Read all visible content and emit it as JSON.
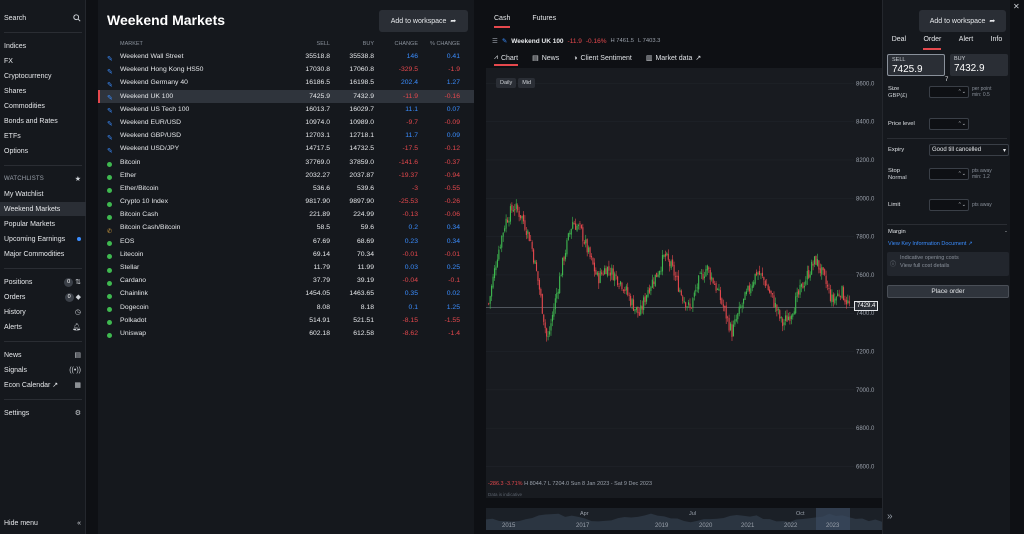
{
  "sidebar": {
    "search": "Search",
    "markets": [
      "Indices",
      "FX",
      "Cryptocurrency",
      "Shares",
      "Commodities",
      "Bonds and Rates",
      "ETFs",
      "Options"
    ],
    "watchlists_header": "WATCHLISTS",
    "watchlists": [
      "My Watchlist",
      "Weekend Markets",
      "Popular Markets",
      "Upcoming Earnings",
      "Major Commodities"
    ],
    "positions": "Positions",
    "positions_count": "0",
    "orders": "Orders",
    "orders_count": "0",
    "history": "History",
    "alerts": "Alerts",
    "news": "News",
    "signals": "Signals",
    "econ": "Econ Calendar",
    "settings": "Settings",
    "hide": "Hide menu"
  },
  "watchlist": {
    "title": "Weekend Markets",
    "add_btn": "Add to workspace",
    "headers": {
      "market": "MARKET",
      "sell": "SELL",
      "buy": "BUY",
      "change": "CHANGE",
      "pct": "% CHANGE"
    },
    "rows": [
      {
        "icon": "pencil",
        "name": "Weekend Wall Street",
        "sell": "35518.8",
        "buy": "35538.8",
        "chg": "146",
        "pct": "0.41",
        "dir": "pos"
      },
      {
        "icon": "pencil",
        "name": "Weekend Hong Kong HS50",
        "sell": "17030.8",
        "buy": "17060.8",
        "chg": "-329.5",
        "pct": "-1.9",
        "dir": "neg"
      },
      {
        "icon": "pencil",
        "name": "Weekend Germany 40",
        "sell": "16186.5",
        "buy": "16198.5",
        "chg": "202.4",
        "pct": "1.27",
        "dir": "pos"
      },
      {
        "icon": "pencil",
        "name": "Weekend UK 100",
        "sell": "7425.9",
        "buy": "7432.9",
        "chg": "-11.9",
        "pct": "-0.16",
        "dir": "neg",
        "selected": true
      },
      {
        "icon": "pencil",
        "name": "Weekend US Tech 100",
        "sell": "16013.7",
        "buy": "16029.7",
        "chg": "11.1",
        "pct": "0.07",
        "dir": "pos"
      },
      {
        "icon": "pencil",
        "name": "Weekend EUR/USD",
        "sell": "10974.0",
        "buy": "10989.0",
        "chg": "-9.7",
        "pct": "-0.09",
        "dir": "neg"
      },
      {
        "icon": "pencil",
        "name": "Weekend GBP/USD",
        "sell": "12703.1",
        "buy": "12718.1",
        "chg": "11.7",
        "pct": "0.09",
        "dir": "pos"
      },
      {
        "icon": "pencil",
        "name": "Weekend USD/JPY",
        "sell": "14717.5",
        "buy": "14732.5",
        "chg": "-17.5",
        "pct": "-0.12",
        "dir": "neg"
      },
      {
        "icon": "dot",
        "name": "Bitcoin",
        "sell": "37769.0",
        "buy": "37859.0",
        "chg": "-141.6",
        "pct": "-0.37",
        "dir": "neg"
      },
      {
        "icon": "dot",
        "name": "Ether",
        "sell": "2032.27",
        "buy": "2037.87",
        "chg": "-19.37",
        "pct": "-0.94",
        "dir": "neg"
      },
      {
        "icon": "dot",
        "name": "Ether/Bitcoin",
        "sell": "536.6",
        "buy": "539.6",
        "chg": "-3",
        "pct": "-0.55",
        "dir": "neg"
      },
      {
        "icon": "dot",
        "name": "Crypto 10 Index",
        "sell": "9817.90",
        "buy": "9897.90",
        "chg": "-25.53",
        "pct": "-0.26",
        "dir": "neg"
      },
      {
        "icon": "dot",
        "name": "Bitcoin Cash",
        "sell": "221.89",
        "buy": "224.99",
        "chg": "-0.13",
        "pct": "-0.06",
        "dir": "neg"
      },
      {
        "icon": "phone",
        "name": "Bitcoin Cash/Bitcoin",
        "sell": "58.5",
        "buy": "59.6",
        "chg": "0.2",
        "pct": "0.34",
        "dir": "pos"
      },
      {
        "icon": "dot",
        "name": "EOS",
        "sell": "67.69",
        "buy": "68.69",
        "chg": "0.23",
        "pct": "0.34",
        "dir": "pos"
      },
      {
        "icon": "dot",
        "name": "Litecoin",
        "sell": "69.14",
        "buy": "70.34",
        "chg": "-0.01",
        "pct": "-0.01",
        "dir": "neg"
      },
      {
        "icon": "dot",
        "name": "Stellar",
        "sell": "11.79",
        "buy": "11.99",
        "chg": "0.03",
        "pct": "0.25",
        "dir": "pos"
      },
      {
        "icon": "dot",
        "name": "Cardano",
        "sell": "37.79",
        "buy": "39.19",
        "chg": "-0.04",
        "pct": "-0.1",
        "dir": "neg"
      },
      {
        "icon": "dot",
        "name": "Chainlink",
        "sell": "1454.05",
        "buy": "1463.65",
        "chg": "0.35",
        "pct": "0.02",
        "dir": "pos"
      },
      {
        "icon": "dot",
        "name": "Dogecoin",
        "sell": "8.08",
        "buy": "8.18",
        "chg": "0.1",
        "pct": "1.25",
        "dir": "pos"
      },
      {
        "icon": "dot",
        "name": "Polkadot",
        "sell": "514.91",
        "buy": "521.51",
        "chg": "-8.15",
        "pct": "-1.55",
        "dir": "neg"
      },
      {
        "icon": "dot",
        "name": "Uniswap",
        "sell": "602.18",
        "buy": "612.58",
        "chg": "-8.62",
        "pct": "-1.4",
        "dir": "neg"
      }
    ]
  },
  "chart_panel": {
    "tabs": [
      "Cash",
      "Futures"
    ],
    "add_btn": "Add to workspace",
    "market": "Weekend UK 100",
    "chg": "-11.9",
    "pct": "-0.16%",
    "high": "H 7461.5",
    "low": "L 7403.3",
    "subtabs": [
      "Chart",
      "News",
      "Client Sentiment",
      "Market data"
    ],
    "toggle": [
      "Daily",
      "Mid"
    ],
    "price_tag": "7429.4",
    "ohlc": {
      "a": "-286.3",
      "b": "-3.71%",
      "h": "H 8044.7",
      "l": "L 7204.0",
      "range": "Sun 8 Jan 2023 - Sat 9 Dec 2023"
    },
    "note": "Data is indicative",
    "month_labels": [
      "Apr",
      "Jul",
      "Oct"
    ],
    "year_labels": [
      "2015",
      "2017",
      "2019",
      "2020",
      "2021",
      "2022",
      "2023"
    ]
  },
  "chart_data": {
    "type": "candlestick",
    "y_ticks": [
      "8600.0",
      "8400.0",
      "8200.0",
      "8000.0",
      "7800.0",
      "7600.0",
      "7400.0",
      "7200.0",
      "7000.0",
      "6800.0",
      "6600.0"
    ],
    "ylim": [
      6540,
      8680
    ],
    "last_price": 7429.4,
    "trend": [
      7450,
      7700,
      7880,
      7960,
      7900,
      7780,
      7540,
      7250,
      7480,
      7700,
      7880,
      7830,
      7700,
      7580,
      7640,
      7600,
      7550,
      7460,
      7390,
      7530,
      7600,
      7700,
      7620,
      7500,
      7420,
      7560,
      7640,
      7550,
      7430,
      7300,
      7420,
      7520,
      7620,
      7560,
      7460,
      7340,
      7400,
      7500,
      7600,
      7680,
      7580,
      7460,
      7520,
      7440
    ],
    "colors": {
      "up": "#3fb950",
      "down": "#e5484d"
    }
  },
  "ticket": {
    "tabs": [
      "Deal",
      "Order",
      "Alert",
      "Info"
    ],
    "sell_label": "SELL",
    "sell_price": "7425.9",
    "buy_label": "BUY",
    "buy_price": "7432.9",
    "spread": "7",
    "size": "Size",
    "size_unit": "GBP(£)",
    "size_note_1": "per point",
    "size_note_2": "min: 0.5",
    "price_level": "Price level",
    "expiry": "Expiry",
    "expiry_value": "Good till cancelled",
    "stop": "Stop",
    "stop_type": "Normal",
    "stop_note_1": "pts away",
    "stop_note_2": "min: 1.2",
    "limit": "Limit",
    "limit_note": "pts away",
    "margin": "Margin",
    "margin_value": "-",
    "kid_link": "View Key Information Document",
    "costs_1": "Indicative opening costs",
    "costs_2": "View full cost details",
    "place": "Place order"
  }
}
